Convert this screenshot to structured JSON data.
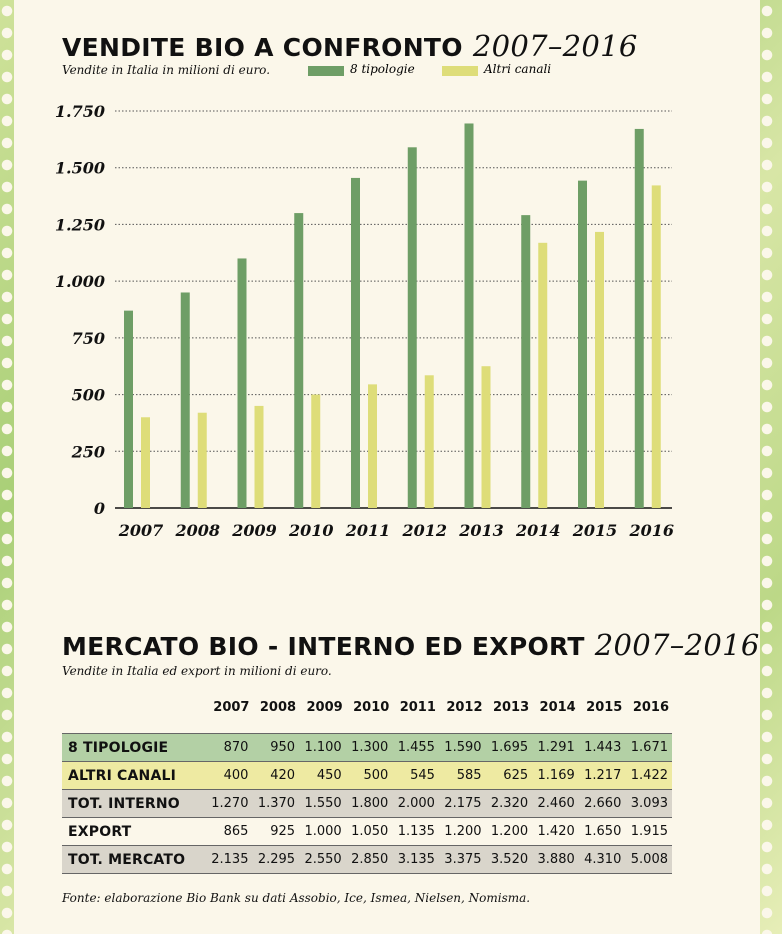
{
  "chart_data": [
    {
      "type": "bar",
      "title": "VENDITE BIO A CONFRONTO",
      "title_years": "2007–2016",
      "subtitle": "Vendite in Italia in milioni di euro.",
      "categories": [
        "2007",
        "2008",
        "2009",
        "2010",
        "2011",
        "2012",
        "2013",
        "2014",
        "2015",
        "2016"
      ],
      "series": [
        {
          "name": "8 tipologie",
          "color": "#6e9e66",
          "values": [
            870,
            950,
            1100,
            1300,
            1455,
            1590,
            1695,
            1291,
            1443,
            1671
          ]
        },
        {
          "name": "Altri canali",
          "color": "#dedd79",
          "values": [
            400,
            420,
            450,
            500,
            545,
            585,
            625,
            1169,
            1217,
            1422
          ]
        }
      ],
      "ylim": [
        0,
        1750
      ],
      "yticks": [
        0,
        250,
        500,
        750,
        1000,
        1250,
        1500,
        1750
      ],
      "ytick_labels": [
        "0",
        "250",
        "500",
        "750",
        "1.000",
        "1.250",
        "1.500",
        "1.750"
      ],
      "grid": "dotted horizontal",
      "legend": "top"
    },
    {
      "type": "table",
      "title": "MERCATO BIO - INTERNO ED EXPORT",
      "title_years": "2007–2016",
      "subtitle": "Vendite in Italia ed export in milioni di euro.",
      "columns": [
        "2007",
        "2008",
        "2009",
        "2010",
        "2011",
        "2012",
        "2013",
        "2014",
        "2015",
        "2016"
      ],
      "rows": [
        {
          "label": "8 TIPOLOGIE",
          "color": "#b3d0a5",
          "values": [
            "870",
            "950",
            "1.100",
            "1.300",
            "1.455",
            "1.590",
            "1.695",
            "1.291",
            "1.443",
            "1.671"
          ]
        },
        {
          "label": "ALTRI CANALI",
          "color": "#eeeaa2",
          "values": [
            "400",
            "420",
            "450",
            "500",
            "545",
            "585",
            "625",
            "1.169",
            "1.217",
            "1.422"
          ]
        },
        {
          "label": "TOT. INTERNO",
          "color": "#d9d5cb",
          "values": [
            "1.270",
            "1.370",
            "1.550",
            "1.800",
            "2.000",
            "2.175",
            "2.320",
            "2.460",
            "2.660",
            "3.093"
          ]
        },
        {
          "label": "EXPORT",
          "color": "#fbf7ea",
          "values": [
            "865",
            "925",
            "1.000",
            "1.050",
            "1.135",
            "1.200",
            "1.200",
            "1.420",
            "1.650",
            "1.915"
          ]
        },
        {
          "label": "TOT. MERCATO",
          "color": "#d9d5cb",
          "values": [
            "2.135",
            "2.295",
            "2.550",
            "2.850",
            "3.135",
            "3.375",
            "3.520",
            "3.880",
            "4.310",
            "5.008"
          ]
        }
      ]
    }
  ],
  "source_note": "Fonte: elaborazione Bio Bank su dati Assobio, Ice, Ismea, Nielsen, Nomisma."
}
